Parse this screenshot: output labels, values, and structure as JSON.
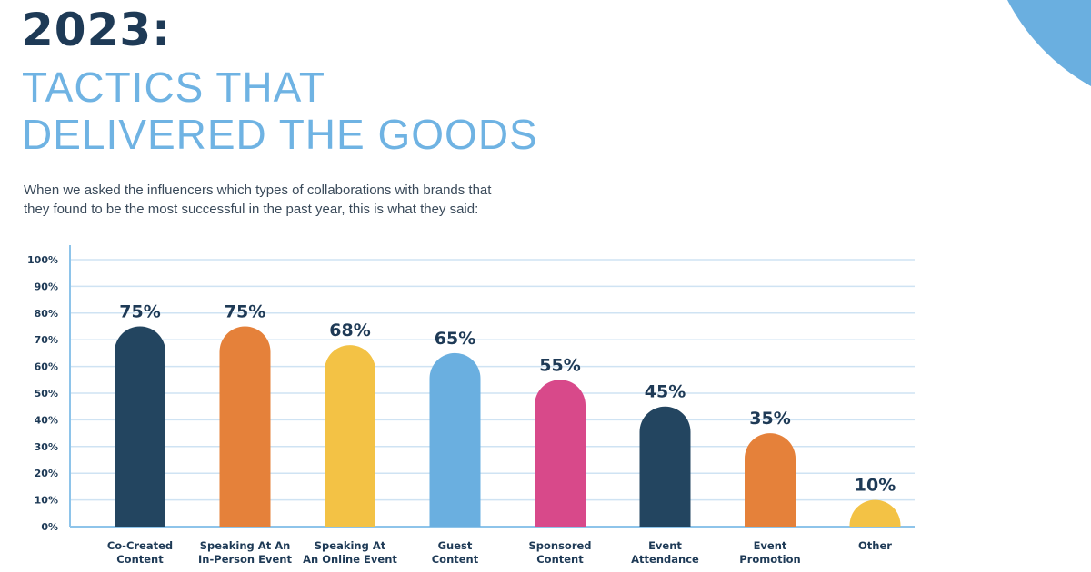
{
  "header": {
    "year": "2023:",
    "title_line1": "TACTICS THAT",
    "title_line2": "DELIVERED THE GOODS",
    "intro_line1": "When we asked the influencers which types of collaborations with brands that",
    "intro_line2": "they found to be the most successful in the past year, this is what they said:"
  },
  "colors": {
    "navy": "#234560",
    "orange": "#e5813a",
    "yellow": "#f3c245",
    "light_blue": "#6aafe0",
    "pink": "#d8498a",
    "accent_arc": "#6aafe0"
  },
  "chart_data": {
    "type": "bar",
    "categories": [
      [
        "Co-Created",
        "Content"
      ],
      [
        "Speaking At An",
        "In-Person Event"
      ],
      [
        "Speaking At",
        "An Online Event"
      ],
      [
        "Guest",
        "Content"
      ],
      [
        "Sponsored",
        "Content"
      ],
      [
        "Event",
        "Attendance"
      ],
      [
        "Event",
        "Promotion"
      ],
      [
        "Other"
      ]
    ],
    "values": [
      75,
      75,
      68,
      65,
      55,
      45,
      35,
      10
    ],
    "data_labels": [
      "75%",
      "75%",
      "68%",
      "65%",
      "55%",
      "45%",
      "35%",
      "10%"
    ],
    "bar_colors": [
      "#234560",
      "#e5813a",
      "#f3c245",
      "#6aafe0",
      "#d8498a",
      "#234560",
      "#e5813a",
      "#f3c245"
    ],
    "ylim": [
      0,
      100
    ],
    "y_ticks": [
      "0%",
      "10%",
      "20%",
      "30%",
      "40%",
      "50%",
      "60%",
      "70%",
      "80%",
      "90%",
      "100%"
    ],
    "grid": true,
    "xlabel": "",
    "ylabel": ""
  }
}
